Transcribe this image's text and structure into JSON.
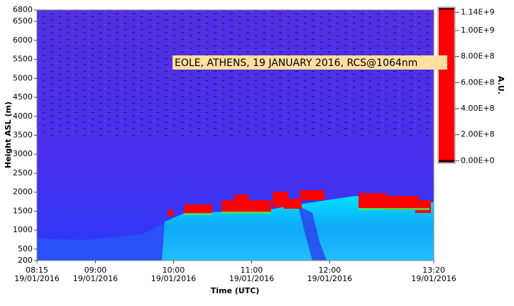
{
  "chart_data": {
    "type": "heatmap",
    "title": "EOLE, ATHENS, 19 JANUARY 2016, RCS@1064nm",
    "xlabel": "Time (UTC)",
    "ylabel": "Height ASL (m)",
    "colorbar_label": "A.U.",
    "xlim": [
      495,
      800
    ],
    "xticks": [
      {
        "value": 495,
        "label": "08:15\n19/01/2016"
      },
      {
        "value": 540,
        "label": "09:00\n19/01/2016"
      },
      {
        "value": 600,
        "label": "10:00\n19/01/2016"
      },
      {
        "value": 660,
        "label": "11:00\n19/01/2016"
      },
      {
        "value": 720,
        "label": "12:00\n19/01/2016"
      },
      {
        "value": 800,
        "label": "13:20\n19/01/2016"
      }
    ],
    "ylim": [
      200,
      6800
    ],
    "yticks": [
      200,
      500,
      1000,
      1500,
      2000,
      2500,
      3000,
      3500,
      4000,
      4500,
      5000,
      5500,
      6000,
      6500,
      6800
    ],
    "clim": [
      -20000000,
      1180000000
    ],
    "cticks": [
      {
        "value": 1140000000,
        "label": "1.14E+9"
      },
      {
        "value": 1000000000,
        "label": "1.00E+9"
      },
      {
        "value": 800000000,
        "label": "8.00E+8"
      },
      {
        "value": 600000000,
        "label": "6.00E+8"
      },
      {
        "value": 400000000,
        "label": "4.00E+8"
      },
      {
        "value": 200000000,
        "label": "2.00E+8"
      },
      {
        "value": 0,
        "label": "0.00E+0"
      }
    ],
    "colorbar_color": "#ff0000"
  }
}
